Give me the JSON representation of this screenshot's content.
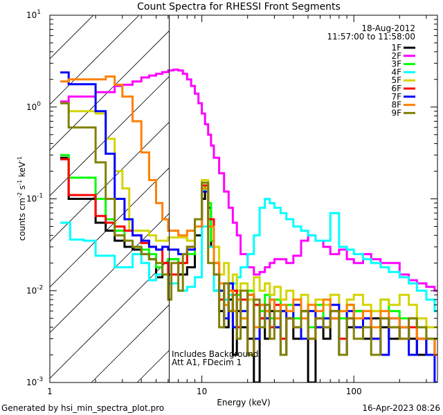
{
  "chart_data": {
    "type": "line",
    "title": "Count Spectra for RHESSI Front Segments",
    "xlabel": "Energy (keV)",
    "ylabel": {
      "base": "counts cm",
      "e1": "-2",
      "mid1": " s",
      "e2": "-1",
      "mid2": " keV",
      "e3": "-1"
    },
    "xscale": "log",
    "yscale": "log",
    "xlim": [
      1,
      355
    ],
    "ylim": [
      0.001,
      10
    ],
    "x_ticks": [
      {
        "v": 1,
        "label": "1"
      },
      {
        "v": 10,
        "label": "10"
      },
      {
        "v": 100,
        "label": "100"
      }
    ],
    "y_ticks": [
      {
        "v": 0.001,
        "base": "10",
        "exp": "-3"
      },
      {
        "v": 0.01,
        "base": "10",
        "exp": "-2"
      },
      {
        "v": 0.1,
        "base": "10",
        "exp": "-1"
      },
      {
        "v": 1,
        "base": "10",
        "exp": "0"
      },
      {
        "v": 10,
        "base": "10",
        "exp": "1"
      }
    ],
    "hatched_region_kev": [
      1,
      6.1
    ],
    "date": "18-Aug-2012",
    "time_range": "11:57:00 to 11:58:00",
    "annotations": [
      "Includes Background",
      "Att A1, FDecim 1"
    ],
    "legend_position": "top-right",
    "high_energy_bins": [
      12,
      13,
      14,
      15,
      16,
      17,
      18,
      20,
      22,
      24,
      26,
      28,
      30,
      33,
      36,
      40,
      45,
      50,
      56,
      63,
      70,
      80,
      90,
      100,
      115,
      130,
      150,
      170,
      200,
      230,
      260,
      300,
      340
    ],
    "series": [
      {
        "name": "1F",
        "color": "#000000",
        "low": [
          [
            1.17,
            0.28
          ],
          [
            1.33,
            0.1
          ],
          [
            2.0,
            0.055
          ],
          [
            2.33,
            0.045
          ],
          [
            2.67,
            0.035
          ],
          [
            3.1,
            0.03
          ],
          [
            3.5,
            0.028
          ],
          [
            4.0,
            0.025
          ],
          [
            4.5,
            0.022
          ],
          [
            5.0,
            0.014
          ],
          [
            5.5,
            0.02
          ],
          [
            6.0,
            0.022
          ],
          [
            7.0,
            0.015
          ],
          [
            8.0,
            0.018
          ],
          [
            9.0,
            0.04
          ],
          [
            10.0,
            0.1
          ],
          [
            10.5,
            0.12
          ],
          [
            11.0,
            0.08
          ],
          [
            11.5,
            0.03
          ]
        ],
        "high": [
          0.01,
          0.006,
          0.004,
          0.008,
          0.002,
          0.006,
          0.004,
          0.003,
          0.001,
          0.005,
          0.003,
          0.006,
          0.004,
          0.002,
          0.005,
          0.003,
          0.006,
          0.001,
          0.004,
          0.003,
          0.005,
          0.002,
          0.004,
          0.006,
          0.003,
          0.005,
          0.004,
          0.003,
          0.004,
          0.003,
          0.002,
          0.003,
          0.002
        ]
      },
      {
        "name": "2F",
        "color": "#ff00ff",
        "low": [
          [
            1.17,
            1.15
          ],
          [
            1.33,
            1.3
          ],
          [
            2.0,
            1.45
          ],
          [
            2.67,
            1.7
          ],
          [
            3.0,
            1.75
          ],
          [
            3.5,
            1.9
          ],
          [
            4.0,
            2.1
          ],
          [
            4.5,
            2.2
          ],
          [
            5.0,
            2.3
          ],
          [
            5.5,
            2.4
          ],
          [
            6.0,
            2.5
          ],
          [
            6.5,
            2.55
          ],
          [
            7.0,
            2.5
          ],
          [
            7.5,
            2.3
          ],
          [
            8.0,
            2.0
          ],
          [
            8.5,
            1.7
          ],
          [
            9.0,
            1.4
          ],
          [
            9.5,
            1.1
          ],
          [
            10.0,
            0.85
          ],
          [
            10.5,
            0.65
          ],
          [
            11.0,
            0.5
          ],
          [
            11.5,
            0.38
          ]
        ],
        "high": [
          0.28,
          0.19,
          0.12,
          0.08,
          0.055,
          0.04,
          0.025,
          0.018,
          0.015,
          0.016,
          0.018,
          0.02,
          0.022,
          0.022,
          0.02,
          0.024,
          0.035,
          0.04,
          0.035,
          0.03,
          0.025,
          0.028,
          0.022,
          0.02,
          0.025,
          0.022,
          0.02,
          0.02,
          0.015,
          0.013,
          0.012,
          0.011,
          0.01
        ]
      },
      {
        "name": "3F",
        "color": "#00ff00",
        "low": [
          [
            1.17,
            0.3
          ],
          [
            1.33,
            0.17
          ],
          [
            2.0,
            0.1
          ],
          [
            2.33,
            0.06
          ],
          [
            2.67,
            0.045
          ],
          [
            3.1,
            0.035
          ],
          [
            3.5,
            0.03
          ],
          [
            4.0,
            0.028
          ],
          [
            4.5,
            0.025
          ],
          [
            5.0,
            0.018
          ],
          [
            5.5,
            0.02
          ],
          [
            6.0,
            0.022
          ],
          [
            7.0,
            0.02
          ],
          [
            8.0,
            0.025
          ],
          [
            9.0,
            0.05
          ],
          [
            10.0,
            0.12
          ],
          [
            10.5,
            0.14
          ],
          [
            11.0,
            0.09
          ],
          [
            11.5,
            0.035
          ]
        ],
        "high": [
          0.02,
          0.01,
          0.008,
          0.012,
          0.006,
          0.009,
          0.005,
          0.01,
          0.007,
          0.006,
          0.009,
          0.005,
          0.008,
          0.006,
          0.007,
          0.005,
          0.006,
          0.004,
          0.007,
          0.005,
          0.006,
          0.005,
          0.007,
          0.006,
          0.005,
          0.006,
          0.008,
          0.006,
          0.005,
          0.005,
          0.004,
          0.003,
          0.003
        ]
      },
      {
        "name": "4F",
        "color": "#00ffff",
        "low": [
          [
            1.17,
            0.055
          ],
          [
            1.36,
            0.036
          ],
          [
            1.67,
            0.035
          ],
          [
            2.0,
            0.024
          ],
          [
            2.33,
            0.024
          ],
          [
            2.67,
            0.018
          ],
          [
            3.5,
            0.025
          ],
          [
            4.0,
            0.02
          ],
          [
            4.5,
            0.013
          ],
          [
            5.0,
            0.015
          ],
          [
            6.0,
            0.012
          ],
          [
            7.0,
            0.01
          ],
          [
            8.0,
            0.011
          ],
          [
            9.0,
            0.014
          ],
          [
            10.0,
            0.05
          ],
          [
            11.0,
            0.03
          ]
        ],
        "high": [
          0.01,
          0.008,
          0.008,
          0.009,
          0.012,
          0.014,
          0.018,
          0.025,
          0.04,
          0.08,
          0.1,
          0.09,
          0.08,
          0.07,
          0.06,
          0.05,
          0.045,
          0.04,
          0.035,
          0.035,
          0.07,
          0.03,
          0.028,
          0.025,
          0.022,
          0.02,
          0.018,
          0.016,
          0.014,
          0.012,
          0.01,
          0.008,
          0.006
        ]
      },
      {
        "name": "5F",
        "color": "#d4d400",
        "low": [
          [
            1.17,
            1.1
          ],
          [
            1.33,
            0.9
          ],
          [
            2.0,
            0.85
          ],
          [
            2.33,
            0.45
          ],
          [
            2.67,
            0.2
          ],
          [
            3.0,
            0.13
          ],
          [
            3.33,
            0.045
          ],
          [
            4.5,
            0.04
          ],
          [
            5.0,
            0.035
          ],
          [
            6.0,
            0.038
          ],
          [
            8.0,
            0.035
          ],
          [
            9.0,
            0.06
          ],
          [
            10.0,
            0.16
          ],
          [
            11.0,
            0.05
          ]
        ],
        "high": [
          0.03,
          0.015,
          0.02,
          0.012,
          0.015,
          0.01,
          0.012,
          0.008,
          0.014,
          0.01,
          0.012,
          0.009,
          0.011,
          0.008,
          0.01,
          0.007,
          0.009,
          0.006,
          0.008,
          0.007,
          0.009,
          0.006,
          0.008,
          0.009,
          0.007,
          0.006,
          0.008,
          0.007,
          0.009,
          0.007,
          0.005,
          0.004,
          0.004
        ]
      },
      {
        "name": "6F",
        "color": "#ff0000",
        "low": [
          [
            1.17,
            0.27
          ],
          [
            1.33,
            0.11
          ],
          [
            2.0,
            0.065
          ],
          [
            2.33,
            0.055
          ],
          [
            2.67,
            0.05
          ],
          [
            3.1,
            0.045
          ],
          [
            3.5,
            0.04
          ],
          [
            4.0,
            0.033
          ],
          [
            4.5,
            0.03
          ],
          [
            5.0,
            0.028
          ],
          [
            5.5,
            0.02
          ],
          [
            6.0,
            0.015
          ],
          [
            7.0,
            0.02
          ],
          [
            8.0,
            0.03
          ],
          [
            9.0,
            0.06
          ],
          [
            10.0,
            0.14
          ],
          [
            11.0,
            0.06
          ]
        ],
        "high": [
          0.02,
          0.008,
          0.012,
          0.006,
          0.01,
          0.004,
          0.008,
          0.002,
          0.007,
          0.005,
          0.006,
          0.004,
          0.007,
          0.003,
          0.005,
          0.004,
          0.006,
          0.003,
          0.005,
          0.004,
          0.006,
          0.003,
          0.005,
          0.004,
          0.005,
          0.003,
          0.005,
          0.004,
          0.003,
          0.004,
          0.003,
          0.002,
          0.002
        ]
      },
      {
        "name": "7F",
        "color": "#0000ff",
        "low": [
          [
            1.17,
            2.38
          ],
          [
            1.33,
            1.77
          ],
          [
            2.0,
            0.9
          ],
          [
            2.33,
            0.31
          ],
          [
            2.67,
            0.1
          ],
          [
            3.1,
            0.06
          ],
          [
            3.5,
            0.04
          ],
          [
            4.0,
            0.035
          ],
          [
            4.5,
            0.03
          ],
          [
            5.0,
            0.028
          ],
          [
            5.5,
            0.03
          ],
          [
            6.0,
            0.028
          ],
          [
            7.0,
            0.025
          ],
          [
            8.0,
            0.028
          ],
          [
            9.0,
            0.05
          ],
          [
            10.0,
            0.12
          ],
          [
            11.0,
            0.05
          ]
        ],
        "high": [
          0.015,
          0.01,
          0.005,
          0.012,
          0.004,
          0.008,
          0.006,
          0.009,
          0.003,
          0.007,
          0.005,
          0.008,
          0.004,
          0.006,
          0.005,
          0.007,
          0.003,
          0.006,
          0.004,
          0.005,
          0.007,
          0.002,
          0.006,
          0.004,
          0.005,
          0.003,
          0.002,
          0.005,
          0.004,
          0.002,
          0.003,
          0.002,
          0.001
        ]
      },
      {
        "name": "8F",
        "color": "#ff8000",
        "low": [
          [
            1.17,
            1.9
          ],
          [
            1.33,
            2.0
          ],
          [
            2.33,
            2.15
          ],
          [
            2.67,
            1.75
          ],
          [
            3.0,
            1.3
          ],
          [
            3.5,
            0.7
          ],
          [
            4.0,
            0.32
          ],
          [
            4.5,
            0.16
          ],
          [
            5.0,
            0.09
          ],
          [
            5.5,
            0.06
          ],
          [
            6.0,
            0.045
          ],
          [
            7.0,
            0.04
          ],
          [
            8.0,
            0.045
          ],
          [
            9.0,
            0.05
          ],
          [
            10.0,
            0.13
          ],
          [
            11.0,
            0.05
          ]
        ],
        "high": [
          0.02,
          0.012,
          0.007,
          0.01,
          0.006,
          0.008,
          0.005,
          0.009,
          0.004,
          0.007,
          0.006,
          0.008,
          0.005,
          0.007,
          0.006,
          0.008,
          0.005,
          0.007,
          0.006,
          0.008,
          0.005,
          0.006,
          0.007,
          0.005,
          0.006,
          0.004,
          0.006,
          0.005,
          0.004,
          0.005,
          0.003,
          0.003,
          0.002
        ]
      },
      {
        "name": "9F",
        "color": "#808000",
        "low": [
          [
            1.17,
            1.1
          ],
          [
            1.33,
            0.6
          ],
          [
            2.0,
            0.25
          ],
          [
            2.33,
            0.1
          ],
          [
            2.67,
            0.04
          ],
          [
            3.1,
            0.035
          ],
          [
            3.5,
            0.03
          ],
          [
            4.0,
            0.025
          ],
          [
            4.5,
            0.022
          ],
          [
            5.0,
            0.02
          ],
          [
            5.5,
            0.015
          ],
          [
            6.0,
            0.008
          ],
          [
            6.3,
            0.02
          ],
          [
            7.0,
            0.01
          ],
          [
            7.5,
            0.025
          ],
          [
            8.0,
            0.03
          ],
          [
            9.0,
            0.06
          ],
          [
            10.0,
            0.15
          ],
          [
            11.0,
            0.02
          ]
        ],
        "high": [
          0.015,
          0.004,
          0.012,
          0.006,
          0.009,
          0.003,
          0.01,
          0.002,
          0.008,
          0.004,
          0.007,
          0.003,
          0.006,
          0.002,
          0.005,
          0.004,
          0.006,
          0.003,
          0.005,
          0.004,
          0.006,
          0.002,
          0.005,
          0.003,
          0.004,
          0.002,
          0.005,
          0.004,
          0.003,
          0.005,
          0.004,
          0.003,
          0.003
        ]
      }
    ]
  },
  "footer": {
    "generated_by": "Generated by hsi_min_spectra_plot.pro",
    "timestamp": "16-Apr-2023 08:26"
  }
}
